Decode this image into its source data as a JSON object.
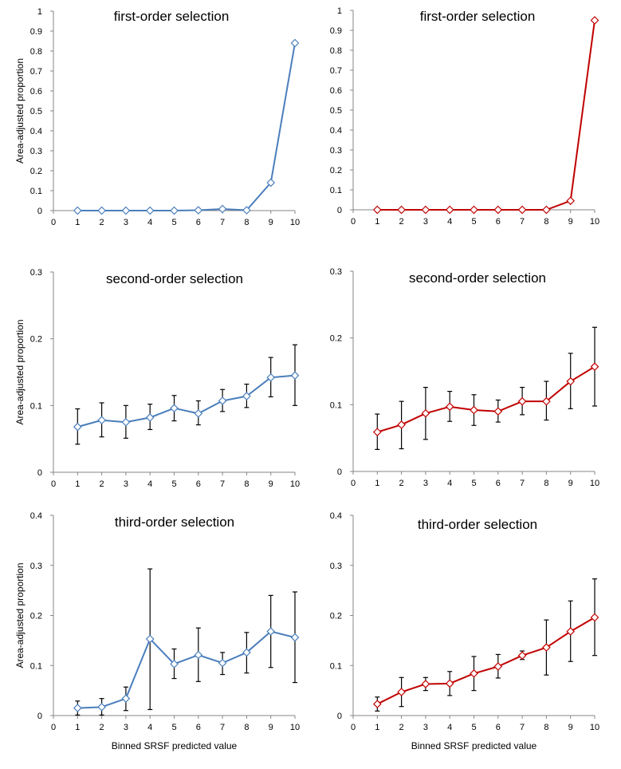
{
  "figure": {
    "y_axis_title": "Area-adjusted proportion",
    "x_axis_title": "Binned SRSF predicted value"
  },
  "colors": {
    "blue_series": "#4a7ebb",
    "red_series": "#c00000",
    "error_bars": "#000000",
    "axes": "#868686"
  },
  "chart_data": [
    {
      "type": "line",
      "title": "first-order selection",
      "ylabel": "Area-adjusted proportion",
      "xlabel": "",
      "xlim": [
        0,
        10
      ],
      "ylim": [
        0,
        1
      ],
      "x_ticks": [
        0,
        1,
        2,
        3,
        4,
        5,
        6,
        7,
        8,
        9,
        10
      ],
      "y_ticks": [
        0,
        0.1,
        0.2,
        0.3,
        0.4,
        0.5,
        0.6,
        0.7,
        0.8,
        0.9,
        1
      ],
      "y_tick_labels": [
        "0",
        "0.1",
        "0.2",
        "0.3",
        "0.4",
        "0.5",
        "0.6",
        "0.7",
        "0.8",
        "0.9",
        "1"
      ],
      "grid": false,
      "marker": "open-diamond",
      "color": "#4a7ebb",
      "series": [
        {
          "x": [
            1,
            2,
            3,
            4,
            5,
            6,
            7,
            8,
            9,
            10
          ],
          "values": [
            0,
            0,
            0,
            0,
            0,
            0.002,
            0.008,
            0.002,
            0.14,
            0.84
          ]
        }
      ]
    },
    {
      "type": "line",
      "title": "first-order selection",
      "ylabel": "",
      "xlabel": "",
      "xlim": [
        0,
        10
      ],
      "ylim": [
        0,
        1
      ],
      "x_ticks": [
        0,
        1,
        2,
        3,
        4,
        5,
        6,
        7,
        8,
        9,
        10
      ],
      "y_ticks": [
        0,
        0.1,
        0.2,
        0.3,
        0.4,
        0.5,
        0.6,
        0.7,
        0.8,
        0.9,
        1
      ],
      "y_tick_labels": [
        "0",
        "0.1",
        "0.2",
        "0.3",
        "0.4",
        "0.5",
        "0.6",
        "0.7",
        "0.8",
        "0.9",
        "1"
      ],
      "grid": false,
      "marker": "open-diamond",
      "color": "#c00000",
      "series": [
        {
          "x": [
            1,
            2,
            3,
            4,
            5,
            6,
            7,
            8,
            9,
            10
          ],
          "values": [
            0,
            0,
            0,
            0,
            0,
            0,
            0,
            0,
            0.045,
            0.95
          ]
        }
      ]
    },
    {
      "type": "line",
      "title": "second-order selection",
      "ylabel": "Area-adjusted proportion",
      "xlabel": "",
      "xlim": [
        0,
        10
      ],
      "ylim": [
        0,
        0.3
      ],
      "x_ticks": [
        0,
        1,
        2,
        3,
        4,
        5,
        6,
        7,
        8,
        9,
        10
      ],
      "y_ticks": [
        0,
        0.1,
        0.2,
        0.3
      ],
      "y_tick_labels": [
        "0",
        "0.1",
        "0.2",
        "0.3"
      ],
      "grid": false,
      "marker": "open-diamond",
      "color": "#4a7ebb",
      "series": [
        {
          "x": [
            1,
            2,
            3,
            4,
            5,
            6,
            7,
            8,
            9,
            10
          ],
          "values": [
            0.068,
            0.078,
            0.075,
            0.082,
            0.096,
            0.088,
            0.107,
            0.114,
            0.142,
            0.145
          ],
          "error_low": [
            0.042,
            0.053,
            0.051,
            0.064,
            0.077,
            0.071,
            0.091,
            0.097,
            0.113,
            0.1
          ],
          "error_high": [
            0.095,
            0.104,
            0.1,
            0.102,
            0.115,
            0.107,
            0.124,
            0.132,
            0.172,
            0.191
          ]
        }
      ]
    },
    {
      "type": "line",
      "title": "second-order selection",
      "ylabel": "",
      "xlabel": "",
      "xlim": [
        0,
        10
      ],
      "ylim": [
        0,
        0.3
      ],
      "x_ticks": [
        0,
        1,
        2,
        3,
        4,
        5,
        6,
        7,
        8,
        9,
        10
      ],
      "y_ticks": [
        0,
        0.1,
        0.2,
        0.3
      ],
      "y_tick_labels": [
        "0",
        "0.1",
        "0.2",
        "0.3"
      ],
      "grid": false,
      "marker": "open-diamond",
      "color": "#c00000",
      "series": [
        {
          "x": [
            1,
            2,
            3,
            4,
            5,
            6,
            7,
            8,
            9,
            10
          ],
          "values": [
            0.059,
            0.07,
            0.087,
            0.097,
            0.092,
            0.09,
            0.105,
            0.105,
            0.135,
            0.157
          ],
          "error_low": [
            0.033,
            0.034,
            0.048,
            0.075,
            0.069,
            0.074,
            0.085,
            0.077,
            0.094,
            0.098
          ],
          "error_high": [
            0.086,
            0.105,
            0.126,
            0.12,
            0.115,
            0.107,
            0.126,
            0.135,
            0.177,
            0.216
          ]
        }
      ]
    },
    {
      "type": "line",
      "title": "third-order selection",
      "ylabel": "Area-adjusted proportion",
      "xlabel": "Binned SRSF predicted value",
      "xlim": [
        0,
        10
      ],
      "ylim": [
        0,
        0.4
      ],
      "x_ticks": [
        0,
        1,
        2,
        3,
        4,
        5,
        6,
        7,
        8,
        9,
        10
      ],
      "y_ticks": [
        0,
        0.1,
        0.2,
        0.3,
        0.4
      ],
      "y_tick_labels": [
        "0",
        "0.1",
        "0.2",
        "0.3",
        "0.4"
      ],
      "grid": false,
      "marker": "open-diamond",
      "color": "#4a7ebb",
      "series": [
        {
          "x": [
            1,
            2,
            3,
            4,
            5,
            6,
            7,
            8,
            9,
            10
          ],
          "values": [
            0.015,
            0.017,
            0.034,
            0.153,
            0.103,
            0.121,
            0.105,
            0.126,
            0.168,
            0.156
          ],
          "error_low": [
            0.001,
            0.001,
            0.01,
            0.012,
            0.074,
            0.068,
            0.082,
            0.085,
            0.096,
            0.066
          ],
          "error_high": [
            0.029,
            0.034,
            0.057,
            0.293,
            0.133,
            0.175,
            0.126,
            0.166,
            0.24,
            0.247
          ]
        }
      ]
    },
    {
      "type": "line",
      "title": "third-order selection",
      "ylabel": "",
      "xlabel": "Binned SRSF predicted value",
      "xlim": [
        0,
        10
      ],
      "ylim": [
        0,
        0.4
      ],
      "x_ticks": [
        0,
        1,
        2,
        3,
        4,
        5,
        6,
        7,
        8,
        9,
        10
      ],
      "y_ticks": [
        0,
        0.1,
        0.2,
        0.3,
        0.4
      ],
      "y_tick_labels": [
        "0",
        "0.1",
        "0.2",
        "0.3",
        "0.4"
      ],
      "grid": false,
      "marker": "open-diamond",
      "color": "#c00000",
      "series": [
        {
          "x": [
            1,
            2,
            3,
            4,
            5,
            6,
            7,
            8,
            9,
            10
          ],
          "values": [
            0.023,
            0.047,
            0.063,
            0.064,
            0.084,
            0.098,
            0.12,
            0.136,
            0.168,
            0.196
          ],
          "error_low": [
            0.009,
            0.018,
            0.05,
            0.04,
            0.05,
            0.075,
            0.112,
            0.081,
            0.108,
            0.12
          ],
          "error_high": [
            0.037,
            0.076,
            0.076,
            0.088,
            0.118,
            0.122,
            0.129,
            0.191,
            0.229,
            0.273
          ]
        }
      ]
    }
  ]
}
